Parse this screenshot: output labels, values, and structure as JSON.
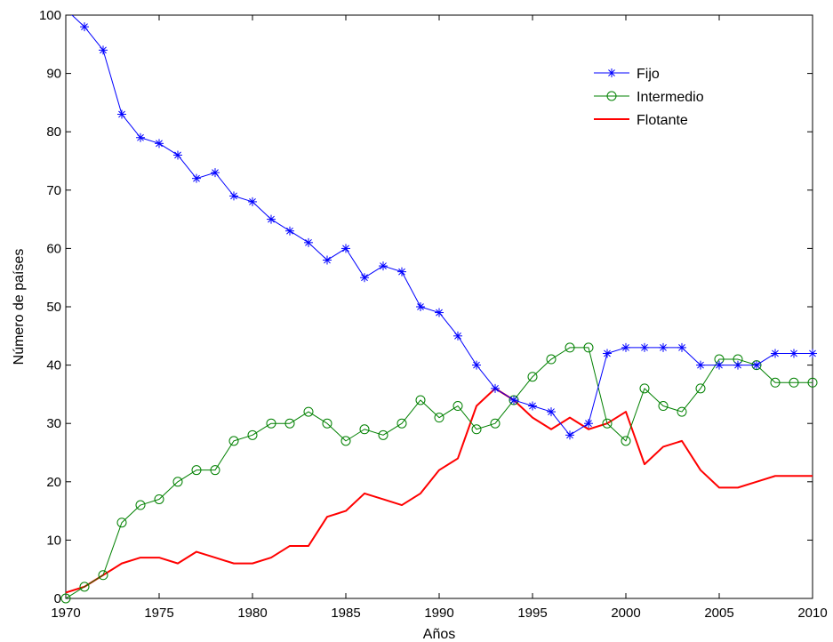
{
  "chart_data": {
    "type": "line",
    "xlabel": "Años",
    "ylabel": "Número de países",
    "xlim": [
      1970,
      2010
    ],
    "ylim": [
      0,
      100
    ],
    "xticks": [
      1970,
      1975,
      1980,
      1985,
      1990,
      1995,
      2000,
      2005,
      2010
    ],
    "yticks": [
      0,
      10,
      20,
      30,
      40,
      50,
      60,
      70,
      80,
      90,
      100
    ],
    "grid": false,
    "legend_position": "top-right",
    "x": [
      1970,
      1971,
      1972,
      1973,
      1974,
      1975,
      1976,
      1977,
      1978,
      1979,
      1980,
      1981,
      1982,
      1983,
      1984,
      1985,
      1986,
      1987,
      1988,
      1989,
      1990,
      1991,
      1992,
      1993,
      1994,
      1995,
      1996,
      1997,
      1998,
      1999,
      2000,
      2001,
      2002,
      2003,
      2004,
      2005,
      2006,
      2007,
      2008,
      2009,
      2010
    ],
    "series": [
      {
        "name": "Fijo",
        "color": "#0000ff",
        "marker": "asterisk",
        "values": [
          101,
          98,
          94,
          83,
          79,
          78,
          76,
          72,
          73,
          69,
          68,
          65,
          63,
          61,
          58,
          60,
          55,
          57,
          56,
          50,
          49,
          45,
          40,
          36,
          34,
          33,
          32,
          28,
          30,
          42,
          43,
          43,
          43,
          43,
          40,
          40,
          40,
          40,
          42,
          42,
          42
        ]
      },
      {
        "name": "Intermedio",
        "color": "#008000",
        "marker": "circle",
        "values": [
          0,
          2,
          4,
          13,
          16,
          17,
          20,
          22,
          22,
          27,
          28,
          30,
          30,
          32,
          30,
          27,
          29,
          28,
          30,
          34,
          31,
          33,
          29,
          30,
          34,
          38,
          41,
          43,
          43,
          30,
          27,
          36,
          33,
          32,
          36,
          41,
          41,
          40,
          37,
          37,
          37
        ]
      },
      {
        "name": "Flotante",
        "color": "#ff0000",
        "marker": "none",
        "values": [
          1,
          2,
          4,
          6,
          7,
          7,
          6,
          8,
          7,
          6,
          6,
          7,
          9,
          9,
          14,
          15,
          18,
          17,
          16,
          18,
          22,
          24,
          33,
          36,
          34,
          31,
          29,
          31,
          29,
          30,
          32,
          23,
          26,
          27,
          22,
          19,
          19,
          20,
          21,
          21,
          21
        ]
      }
    ]
  }
}
